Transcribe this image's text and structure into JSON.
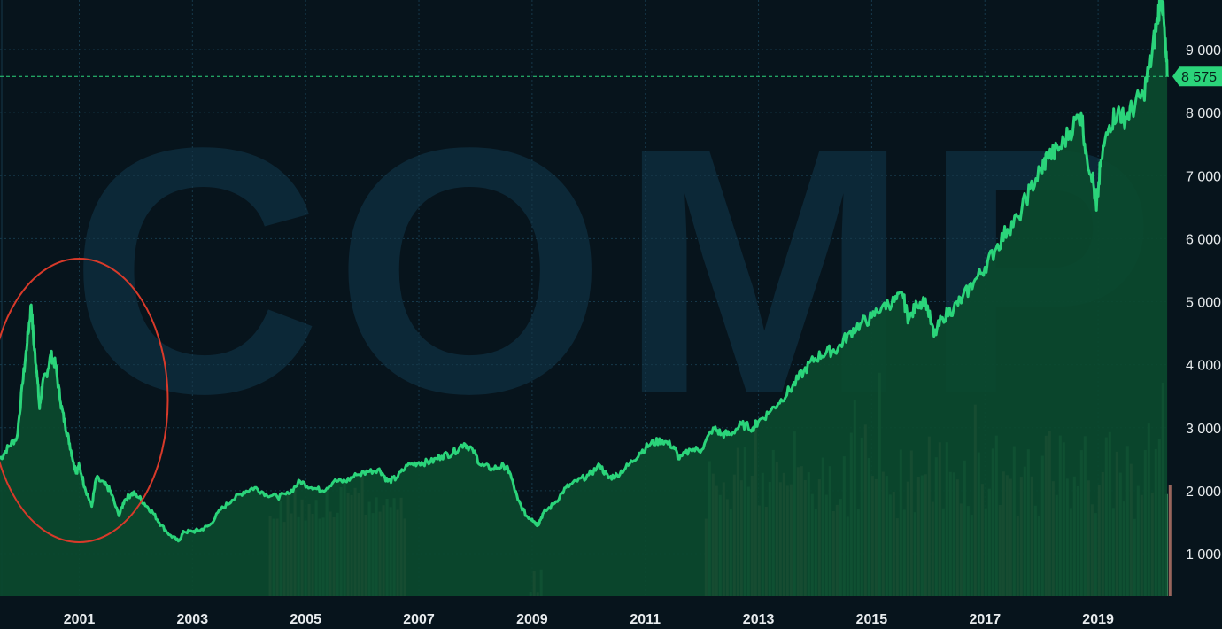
{
  "chart_data": {
    "type": "area",
    "watermark": "COMP",
    "x_tick_labels": [
      "2001",
      "2003",
      "2005",
      "2007",
      "2009",
      "2011",
      "2013",
      "2015",
      "2017",
      "2019"
    ],
    "y_tick_labels": [
      "1 000",
      "2 000",
      "3 000",
      "4 000",
      "5 000",
      "6 000",
      "7 000",
      "8 000",
      "9 000"
    ],
    "y_ticks": [
      1000,
      2000,
      3000,
      4000,
      5000,
      6000,
      7000,
      8000,
      9000
    ],
    "xlim": [
      1999.6,
      2020.25
    ],
    "ylim": [
      500,
      10000
    ],
    "grid": true,
    "last_price": 8575,
    "last_price_label": "8 575",
    "annotation": "red ellipse around the 2000 peak",
    "series": [
      {
        "values": [
          [
            1999.6,
            2500
          ],
          [
            1999.75,
            2700
          ],
          [
            1999.9,
            2850
          ],
          [
            2000.0,
            3700
          ],
          [
            2000.08,
            4350
          ],
          [
            2000.15,
            4950
          ],
          [
            2000.2,
            4300
          ],
          [
            2000.25,
            3900
          ],
          [
            2000.3,
            3300
          ],
          [
            2000.35,
            3700
          ],
          [
            2000.42,
            3850
          ],
          [
            2000.5,
            4150
          ],
          [
            2000.58,
            4000
          ],
          [
            2000.67,
            3400
          ],
          [
            2000.75,
            3050
          ],
          [
            2000.83,
            2750
          ],
          [
            2000.9,
            2450
          ],
          [
            2000.95,
            2300
          ],
          [
            2001.0,
            2400
          ],
          [
            2001.1,
            2050
          ],
          [
            2001.22,
            1750
          ],
          [
            2001.3,
            2200
          ],
          [
            2001.45,
            2100
          ],
          [
            2001.55,
            2000
          ],
          [
            2001.7,
            1600
          ],
          [
            2001.8,
            1850
          ],
          [
            2001.92,
            1950
          ],
          [
            2002.0,
            1950
          ],
          [
            2002.15,
            1800
          ],
          [
            2002.3,
            1650
          ],
          [
            2002.45,
            1450
          ],
          [
            2002.6,
            1300
          ],
          [
            2002.75,
            1200
          ],
          [
            2002.85,
            1350
          ],
          [
            2003.0,
            1350
          ],
          [
            2003.15,
            1380
          ],
          [
            2003.3,
            1450
          ],
          [
            2003.5,
            1700
          ],
          [
            2003.7,
            1850
          ],
          [
            2003.9,
            1980
          ],
          [
            2004.1,
            2050
          ],
          [
            2004.3,
            1950
          ],
          [
            2004.5,
            1900
          ],
          [
            2004.7,
            1950
          ],
          [
            2004.9,
            2150
          ],
          [
            2005.1,
            2050
          ],
          [
            2005.3,
            2000
          ],
          [
            2005.5,
            2150
          ],
          [
            2005.7,
            2150
          ],
          [
            2005.9,
            2250
          ],
          [
            2006.1,
            2300
          ],
          [
            2006.3,
            2350
          ],
          [
            2006.45,
            2150
          ],
          [
            2006.6,
            2200
          ],
          [
            2006.8,
            2400
          ],
          [
            2007.0,
            2450
          ],
          [
            2007.2,
            2450
          ],
          [
            2007.4,
            2550
          ],
          [
            2007.6,
            2600
          ],
          [
            2007.8,
            2750
          ],
          [
            2007.95,
            2650
          ],
          [
            2008.1,
            2400
          ],
          [
            2008.3,
            2350
          ],
          [
            2008.5,
            2400
          ],
          [
            2008.6,
            2300
          ],
          [
            2008.75,
            1850
          ],
          [
            2008.9,
            1600
          ],
          [
            2009.0,
            1550
          ],
          [
            2009.1,
            1450
          ],
          [
            2009.2,
            1650
          ],
          [
            2009.4,
            1800
          ],
          [
            2009.6,
            2050
          ],
          [
            2009.8,
            2150
          ],
          [
            2010.0,
            2250
          ],
          [
            2010.2,
            2400
          ],
          [
            2010.35,
            2200
          ],
          [
            2010.5,
            2250
          ],
          [
            2010.7,
            2400
          ],
          [
            2010.9,
            2600
          ],
          [
            2011.1,
            2750
          ],
          [
            2011.3,
            2800
          ],
          [
            2011.5,
            2700
          ],
          [
            2011.6,
            2500
          ],
          [
            2011.8,
            2650
          ],
          [
            2012.0,
            2650
          ],
          [
            2012.2,
            3000
          ],
          [
            2012.35,
            2900
          ],
          [
            2012.5,
            2900
          ],
          [
            2012.7,
            3050
          ],
          [
            2012.9,
            3000
          ],
          [
            2013.0,
            3100
          ],
          [
            2013.2,
            3250
          ],
          [
            2013.4,
            3450
          ],
          [
            2013.6,
            3650
          ],
          [
            2013.8,
            3900
          ],
          [
            2014.0,
            4100
          ],
          [
            2014.2,
            4200
          ],
          [
            2014.4,
            4250
          ],
          [
            2014.6,
            4500
          ],
          [
            2014.8,
            4650
          ],
          [
            2015.0,
            4750
          ],
          [
            2015.2,
            4950
          ],
          [
            2015.4,
            5000
          ],
          [
            2015.55,
            5100
          ],
          [
            2015.65,
            4700
          ],
          [
            2015.8,
            4950
          ],
          [
            2015.95,
            5050
          ],
          [
            2016.1,
            4450
          ],
          [
            2016.25,
            4750
          ],
          [
            2016.45,
            4900
          ],
          [
            2016.6,
            5050
          ],
          [
            2016.8,
            5300
          ],
          [
            2017.0,
            5550
          ],
          [
            2017.2,
            5850
          ],
          [
            2017.4,
            6150
          ],
          [
            2017.6,
            6350
          ],
          [
            2017.8,
            6800
          ],
          [
            2018.0,
            7100
          ],
          [
            2018.1,
            7300
          ],
          [
            2018.3,
            7400
          ],
          [
            2018.5,
            7700
          ],
          [
            2018.7,
            8000
          ],
          [
            2018.8,
            7300
          ],
          [
            2018.9,
            7000
          ],
          [
            2018.97,
            6450
          ],
          [
            2019.05,
            7250
          ],
          [
            2019.2,
            7800
          ],
          [
            2019.35,
            8050
          ],
          [
            2019.45,
            7900
          ],
          [
            2019.6,
            8050
          ],
          [
            2019.8,
            8300
          ],
          [
            2019.95,
            8900
          ],
          [
            2020.05,
            9500
          ],
          [
            2020.12,
            9950
          ],
          [
            2020.18,
            9150
          ],
          [
            2020.22,
            8575
          ]
        ]
      }
    ]
  },
  "volume_data": {
    "segments": [
      {
        "x": [
          2004.35,
          2006.75
        ],
        "low": 1300,
        "high": 1950
      },
      {
        "x": [
          2008.95,
          2009.15
        ],
        "low": 350,
        "high": 800
      },
      {
        "x": [
          2012.05,
          2020.25
        ],
        "low": 1350,
        "high": 2950
      }
    ]
  },
  "colors": {
    "background": "#07141c",
    "line": "#2bd47a",
    "area_fill": "#0b4a2e",
    "grid": "#16384a",
    "volume_up": "#4fb874",
    "volume_down": "#b8786a",
    "annotation": "#d83a2a",
    "last_price_tag": "#2bd47a",
    "axis_text": "#e8ecee"
  }
}
